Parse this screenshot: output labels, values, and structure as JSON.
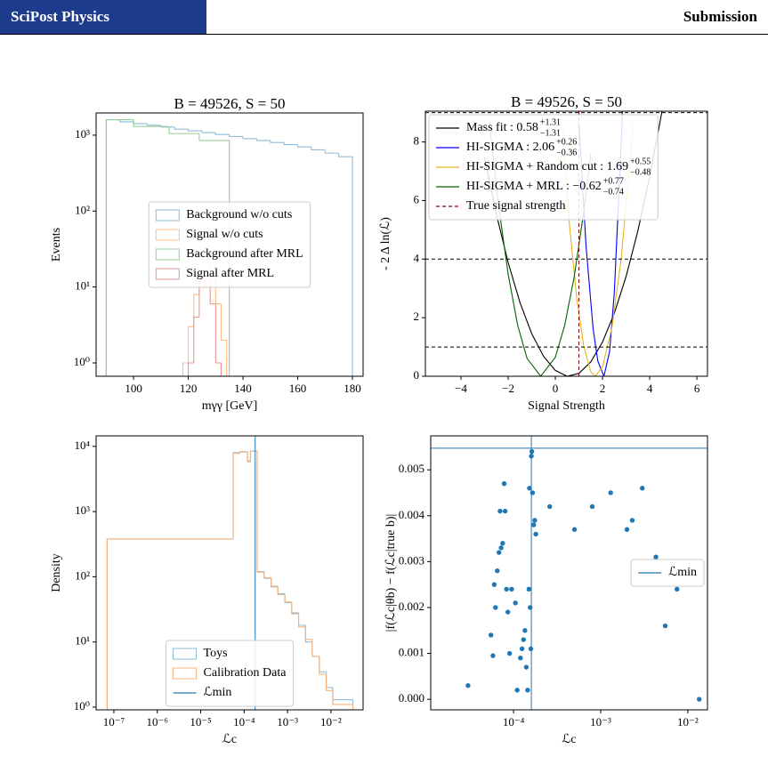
{
  "header": {
    "journal": "SciPost Physics",
    "label": "Submission"
  },
  "chart_data": [
    {
      "type": "hist",
      "title": "B = 49526, S = 50",
      "xlabel": "mγγ [GeV]",
      "ylabel": "Events",
      "xlim": [
        86.3,
        183.9
      ],
      "xticks": [
        100,
        120,
        140,
        160,
        180
      ],
      "ylim": [
        0.667,
        1960
      ],
      "yscale": "log",
      "yticks": [
        {
          "value": 1,
          "label": "10⁰"
        },
        {
          "value": 10,
          "label": "10¹"
        },
        {
          "value": 100,
          "label": "10²"
        },
        {
          "value": 1000,
          "label": "10³"
        }
      ],
      "legend": "center",
      "series": [
        {
          "name": "Background w/o cuts",
          "color": "#8fbbd9",
          "bins": [
            90,
            95,
            100,
            105,
            110,
            115,
            120,
            125,
            130,
            135,
            140,
            145,
            150,
            155,
            160,
            165,
            170,
            175,
            180
          ],
          "values": [
            1600,
            1500,
            1420,
            1350,
            1280,
            1200,
            1140,
            1080,
            1020,
            960,
            900,
            850,
            800,
            750,
            700,
            640,
            580,
            520
          ]
        },
        {
          "name": "Signal w/o cuts",
          "color": "#ffbf86",
          "bins": [
            118,
            120,
            122,
            124,
            126,
            128,
            130,
            132,
            134
          ],
          "values": [
            1,
            3,
            8,
            12,
            10,
            20,
            6,
            2
          ]
        },
        {
          "name": "Background after MRL",
          "color": "#95cf95",
          "bins": [
            90,
            100,
            113,
            124,
            135
          ],
          "values": [
            1600,
            1300,
            1050,
            850
          ]
        },
        {
          "name": "Signal after MRL",
          "color": "#eb9393",
          "bins": [
            120,
            122,
            124,
            126,
            128,
            130,
            132
          ],
          "values": [
            1,
            4,
            10,
            12,
            6,
            1
          ]
        }
      ]
    },
    {
      "type": "line",
      "title": "B = 49526, S = 50",
      "xlabel": "Signal Strength",
      "ylabel": "- 2 Δ ln(ℒ)",
      "xlim": [
        -5.51,
        6.45
      ],
      "xticks": [
        {
          "value": -4,
          "label": "−4"
        },
        {
          "value": -2,
          "label": "−2"
        },
        0,
        2,
        4,
        6
      ],
      "ylim": [
        0,
        9.05
      ],
      "yticks": [
        0,
        2,
        4,
        6,
        8
      ],
      "legend": "upper left",
      "series": [
        {
          "name": "Mass fit : 0.58",
          "err_up": "+1.31",
          "err_down": "−1.31",
          "color": "#000000",
          "x": [
            -3,
            -2.5,
            -2,
            -1.5,
            -1,
            -0.5,
            0,
            0.5,
            1,
            1.5,
            2,
            2.5,
            3,
            3.5,
            4,
            4.5,
            5
          ],
          "values": [
            7.47,
            5.53,
            3.88,
            2.52,
            1.45,
            0.68,
            0.2,
            0,
            0.1,
            0.49,
            1.17,
            2.15,
            3.41,
            4.97,
            6.82,
            8.95,
            11.39
          ]
        },
        {
          "name": "HI-SIGMA : 2.06",
          "err_up": "+0.26",
          "err_down": "−0.36",
          "color": "#0000ff",
          "x": [
            1.0,
            1.3,
            1.6,
            1.8,
            2.06,
            2.3,
            2.5,
            2.8,
            2.85
          ],
          "values": [
            8.67,
            4.46,
            1.63,
            0.52,
            0,
            0.85,
            2.86,
            8.1,
            9.23
          ]
        },
        {
          "name": "HI-SIGMA + Random cut : 1.69",
          "err_up": "+0.55",
          "err_down": "−0.48",
          "color": "#e8b320",
          "x": [
            0.3,
            0.6,
            0.9,
            1.2,
            1.5,
            1.69,
            2.0,
            2.4,
            2.8,
            3.3
          ],
          "values": [
            8.39,
            5.16,
            2.71,
            1.04,
            0.16,
            0,
            0.32,
            1.67,
            4.07,
            8.57
          ]
        },
        {
          "name": "HI-SIGMA + MRL : −0.62",
          "err_up": "+0.77",
          "err_down": "−0.74",
          "color": "#006400",
          "x": [
            -2.8,
            -2.4,
            -2,
            -1.6,
            -1.2,
            -0.62,
            0,
            0.4,
            0.8,
            1.2,
            1.5
          ],
          "values": [
            8.68,
            5.79,
            3.48,
            1.75,
            0.61,
            0,
            0.65,
            1.75,
            3.4,
            5.59,
            7.58
          ]
        }
      ],
      "vlines": [
        {
          "name": "True signal strength",
          "x": 1,
          "color": "#8b0000",
          "style": "dashed"
        }
      ],
      "hlines": [
        {
          "y": 1,
          "color": "#000000",
          "style": "dashed"
        },
        {
          "y": 4,
          "color": "#000000",
          "style": "dashed"
        },
        {
          "y": 9,
          "color": "#000000",
          "style": "dashed"
        }
      ]
    },
    {
      "type": "hist",
      "xlabel": "ℒc",
      "ylabel": "Density",
      "xlim": [
        3.9e-08,
        0.055
      ],
      "xscale": "log",
      "xticks": [
        {
          "value": 1e-07,
          "label": "10⁻⁷"
        },
        {
          "value": 1e-06,
          "label": "10⁻⁶"
        },
        {
          "value": 1e-05,
          "label": "10⁻⁵"
        },
        {
          "value": 0.0001,
          "label": "10⁻⁴"
        },
        {
          "value": 0.001,
          "label": "10⁻³"
        },
        {
          "value": 0.01,
          "label": "10⁻²"
        }
      ],
      "ylim": [
        0.91,
        14500
      ],
      "yscale": "log",
      "yticks": [
        {
          "value": 1,
          "label": "10⁰"
        },
        {
          "value": 10,
          "label": "10¹"
        },
        {
          "value": 100,
          "label": "10²"
        },
        {
          "value": 1000,
          "label": "10³"
        },
        {
          "value": 10000,
          "label": "10⁴"
        }
      ],
      "legend": "lower center",
      "series": [
        {
          "name": "Toys",
          "color": "#8fbbd9",
          "bins": [
            7e-08,
            5.6e-05,
            8e-05,
            0.00012,
            0.00014,
            0.0002,
            0.00029,
            0.00042,
            0.0006,
            0.00087,
            0.00125,
            0.0018,
            0.0026,
            0.0037,
            0.0054,
            0.0078,
            0.011,
            0.032
          ],
          "values": [
            380,
            8000,
            8300,
            6000,
            8500,
            120,
            95,
            70,
            55,
            40,
            28,
            18,
            10,
            6,
            3.5,
            2,
            1.3
          ]
        },
        {
          "name": "Calibration Data",
          "color": "#f5b27a",
          "bins": [
            7e-08,
            5.6e-05,
            8e-05,
            0.00012,
            0.00014,
            0.0002,
            0.00029,
            0.00042,
            0.0006,
            0.00087,
            0.00125,
            0.0018,
            0.0026,
            0.0037,
            0.0054,
            0.0078,
            0.011,
            0.032
          ],
          "values": [
            380,
            7800,
            8200,
            5800,
            8400,
            118,
            97,
            72,
            53,
            41,
            27,
            17,
            11,
            6,
            3.2,
            1.8,
            1.1
          ]
        }
      ],
      "vlines": [
        {
          "name": "ℒmin",
          "x": 0.00018,
          "color": "#1f77b4",
          "style": "solid"
        }
      ]
    },
    {
      "type": "scatter",
      "xlabel": "ℒc",
      "ylabel": "|f(ℒc|θb) − f(ℒc|true b)|",
      "xlim": [
        1.12e-05,
        0.0168
      ],
      "xscale": "log",
      "xticks": [
        {
          "value": 0.0001,
          "label": "10⁻⁴"
        },
        {
          "value": 0.001,
          "label": "10⁻³"
        },
        {
          "value": 0.01,
          "label": "10⁻²"
        }
      ],
      "ylim": [
        -0.00023,
        0.00574
      ],
      "yticks": [
        {
          "value": 0,
          "label": "0.000"
        },
        {
          "value": 0.001,
          "label": "0.001"
        },
        {
          "value": 0.002,
          "label": "0.002"
        },
        {
          "value": 0.003,
          "label": "0.003"
        },
        {
          "value": 0.004,
          "label": "0.004"
        },
        {
          "value": 0.005,
          "label": "0.005"
        }
      ],
      "legend": "center right",
      "series": [
        {
          "color": "#1f77b4",
          "x": [
            3e-05,
            5.5e-05,
            5.8e-05,
            6e-05,
            6.2e-05,
            6.5e-05,
            6.8e-05,
            7e-05,
            7.2e-05,
            7.5e-05,
            7.8e-05,
            8e-05,
            8.3e-05,
            8.6e-05,
            9e-05,
            9.5e-05,
            0.000105,
            0.00011,
            0.00012,
            0.000125,
            0.00013,
            0.000135,
            0.00014,
            0.000145,
            0.00015,
            0.000152,
            0.000155,
            0.000158,
            0.00016,
            0.000162,
            0.000165,
            0.00017,
            0.000175,
            0.00018,
            0.00026,
            0.0005,
            0.0008,
            0.0013,
            0.002,
            0.0023,
            0.003,
            0.0043,
            0.0055,
            0.0075,
            0.0135
          ],
          "values": [
            0.0003,
            0.0014,
            0.00095,
            0.0025,
            0.002,
            0.0028,
            0.0032,
            0.0041,
            0.0033,
            0.0034,
            0.0047,
            0.0041,
            0.0024,
            0.0019,
            0.001,
            0.0024,
            0.0021,
            0.0002,
            0.0009,
            0.0011,
            0.0013,
            0.0015,
            0.0007,
            0.0002,
            0.0024,
            0.0046,
            0.002,
            0.0011,
            0.0053,
            0.0054,
            0.0045,
            0.0038,
            0.0039,
            0.0036,
            0.0042,
            0.0037,
            0.0042,
            0.0045,
            0.0037,
            0.0039,
            0.0046,
            0.0031,
            0.0016,
            0.0024,
            0
          ]
        }
      ],
      "vlines": [
        {
          "name": "ℒmin",
          "x": 0.00016,
          "color": "#1f77b4",
          "style": "solid"
        }
      ],
      "hlines": [
        {
          "y": 0.00547,
          "color": "#1f77b4",
          "style": "solid"
        }
      ]
    }
  ]
}
